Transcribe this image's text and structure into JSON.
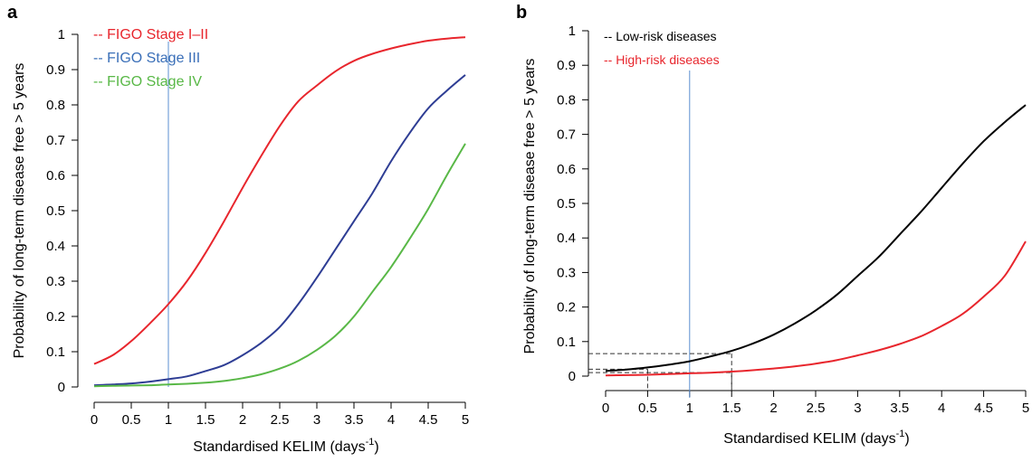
{
  "chart_data": [
    {
      "panel": "a",
      "type": "line",
      "xlabel": "Standardised KELIM (days",
      "xlabel_sup": "-1",
      "xlabel_close": ")",
      "ylabel": "Probability of long-term disease free > 5 years",
      "xlim": [
        0,
        5
      ],
      "ylim": [
        0,
        1
      ],
      "x_ticks": [
        "0",
        "0.5",
        "1",
        "1.5",
        "2",
        "2.5",
        "3",
        "3.5",
        "4",
        "4.5",
        "5"
      ],
      "y_ticks": [
        "0",
        "0.1",
        "0.2",
        "0.3",
        "0.4",
        "0.5",
        "0.6",
        "0.7",
        "0.8",
        "0.9",
        "1"
      ],
      "reference_line_x": 1,
      "reference_line_color": "#5b8fd0",
      "legend_position": "top-left",
      "x": [
        0,
        0.25,
        0.5,
        0.75,
        1,
        1.25,
        1.5,
        1.75,
        2,
        2.25,
        2.5,
        2.75,
        3,
        3.25,
        3.5,
        3.75,
        4,
        4.25,
        4.5,
        4.75,
        5
      ],
      "series": [
        {
          "name": "FIGO Stage I–II",
          "legend": "-- FIGO Stage I–II",
          "color": "#e8262d",
          "values": [
            0.065,
            0.09,
            0.13,
            0.18,
            0.235,
            0.3,
            0.38,
            0.47,
            0.565,
            0.655,
            0.74,
            0.81,
            0.855,
            0.895,
            0.925,
            0.945,
            0.96,
            0.972,
            0.982,
            0.988,
            0.992
          ]
        },
        {
          "name": "FIGO Stage III",
          "legend": "-- FIGO Stage III",
          "color": "#2e3d94",
          "values": [
            0.005,
            0.007,
            0.01,
            0.015,
            0.022,
            0.03,
            0.045,
            0.062,
            0.09,
            0.125,
            0.17,
            0.235,
            0.31,
            0.39,
            0.47,
            0.55,
            0.64,
            0.72,
            0.79,
            0.84,
            0.885
          ]
        },
        {
          "name": "FIGO Stage IV",
          "legend": "-- FIGO Stage IV",
          "color": "#59b847",
          "values": [
            0.002,
            0.003,
            0.004,
            0.005,
            0.007,
            0.009,
            0.012,
            0.017,
            0.025,
            0.036,
            0.052,
            0.074,
            0.105,
            0.145,
            0.2,
            0.27,
            0.34,
            0.42,
            0.505,
            0.6,
            0.69
          ]
        }
      ],
      "legend_colors": [
        "#e8262d",
        "#3a6fb8",
        "#59b847"
      ]
    },
    {
      "panel": "b",
      "type": "line",
      "xlabel": "Standardised KELIM (days",
      "xlabel_sup": "-1",
      "xlabel_close": ")",
      "ylabel": "Probability of long-term disease free > 5 years",
      "xlim": [
        0,
        5
      ],
      "ylim": [
        0,
        1
      ],
      "x_ticks": [
        "0",
        "0.5",
        "1",
        "1.5",
        "2",
        "2.5",
        "3",
        "3.5",
        "4",
        "4.5",
        "5"
      ],
      "y_ticks": [
        "0",
        "0.1",
        "0.2",
        "0.3",
        "0.4",
        "0.5",
        "0.6",
        "0.7",
        "0.8",
        "0.9",
        "1"
      ],
      "reference_line_x": 1,
      "reference_line_color": "#5b8fd0",
      "legend_position": "top-left",
      "x": [
        0,
        0.25,
        0.5,
        0.75,
        1,
        1.25,
        1.5,
        1.75,
        2,
        2.25,
        2.5,
        2.75,
        3,
        3.25,
        3.5,
        3.75,
        4,
        4.25,
        4.5,
        4.75,
        5
      ],
      "series": [
        {
          "name": "Low-risk diseases",
          "legend": "-- Low-risk diseases",
          "color": "#000000",
          "values": [
            0.015,
            0.019,
            0.025,
            0.033,
            0.043,
            0.057,
            0.073,
            0.094,
            0.12,
            0.152,
            0.19,
            0.235,
            0.29,
            0.345,
            0.41,
            0.475,
            0.545,
            0.615,
            0.68,
            0.735,
            0.785
          ]
        },
        {
          "name": "High-risk diseases",
          "legend": "-- High-risk diseases",
          "color": "#e8262d",
          "values": [
            0.002,
            0.003,
            0.004,
            0.006,
            0.008,
            0.01,
            0.013,
            0.017,
            0.022,
            0.028,
            0.036,
            0.046,
            0.06,
            0.075,
            0.093,
            0.115,
            0.145,
            0.18,
            0.23,
            0.29,
            0.39
          ]
        }
      ],
      "dashed_guides": [
        {
          "x": 0.5,
          "y": 0.02
        },
        {
          "x": 1.5,
          "y": 0.065
        },
        {
          "x": 1.5,
          "y": 0.01
        }
      ]
    }
  ]
}
